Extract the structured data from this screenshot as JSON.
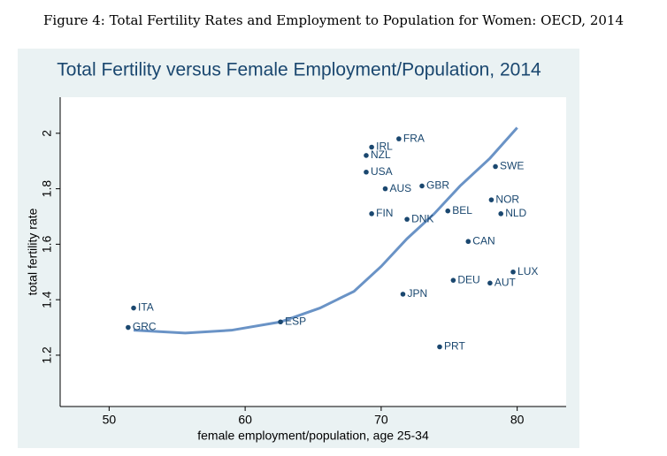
{
  "caption": "Figure 4: Total Fertility Rates and Employment to Population for Women: OECD, 2014",
  "chart_data": {
    "type": "scatter",
    "title": "Total Fertility versus Female Employment/Population, 2014",
    "x_label": "female employment/population, age 25-34",
    "y_label": "total fertility rate",
    "labels": [
      "ITA",
      "GRC",
      "ESP",
      "IRL",
      "NZL",
      "USA",
      "FRA",
      "AUS",
      "GBR",
      "FIN",
      "DNK",
      "BEL",
      "SWE",
      "NOR",
      "NLD",
      "CAN",
      "LUX",
      "DEU",
      "AUT",
      "JPN",
      "PRT"
    ],
    "x": [
      51.8,
      51.4,
      62.6,
      69.3,
      68.9,
      68.9,
      71.3,
      70.3,
      73.0,
      69.3,
      71.9,
      74.9,
      78.4,
      78.1,
      78.8,
      76.4,
      79.7,
      75.3,
      78.0,
      71.6,
      74.3
    ],
    "y": [
      1.37,
      1.3,
      1.32,
      1.95,
      1.92,
      1.86,
      1.98,
      1.8,
      1.81,
      1.71,
      1.69,
      1.72,
      1.88,
      1.76,
      1.71,
      1.61,
      1.5,
      1.47,
      1.46,
      1.42,
      1.23
    ],
    "color": "#1a476f",
    "fit": {
      "x": [
        51.8,
        55.6,
        59.0,
        62.6,
        65.5,
        68.0,
        70.0,
        71.9,
        73.9,
        75.8,
        78.0,
        80.0
      ],
      "y": [
        1.29,
        1.28,
        1.29,
        1.32,
        1.37,
        1.43,
        1.52,
        1.62,
        1.71,
        1.81,
        1.91,
        2.02
      ],
      "color": "#6a93c6"
    },
    "xlim": [
      46.4,
      83.6
    ],
    "ylim": [
      1.015,
      2.13
    ],
    "xticks": [
      50,
      60,
      70,
      80
    ],
    "yticks": [
      1.2,
      1.4,
      1.6,
      1.8,
      2
    ],
    "grid": false
  }
}
